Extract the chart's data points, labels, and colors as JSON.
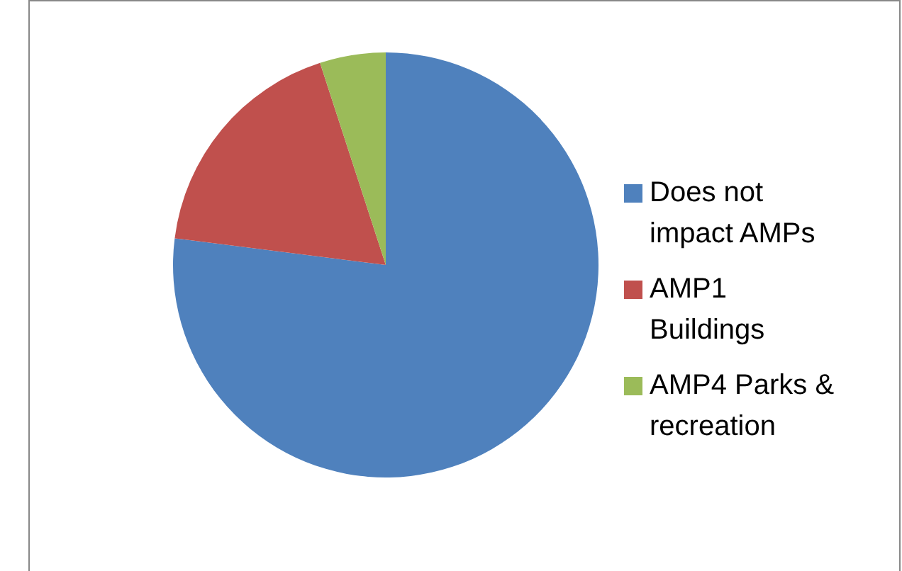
{
  "chart_data": {
    "type": "pie",
    "categories": [
      "Does not impact AMPs",
      "AMP1 Buildings",
      "AMP4 Parks & recreation"
    ],
    "values": [
      77,
      18,
      5
    ],
    "colors": [
      "#4f81bd",
      "#c0504d",
      "#9bbb59"
    ],
    "legend": "right"
  }
}
